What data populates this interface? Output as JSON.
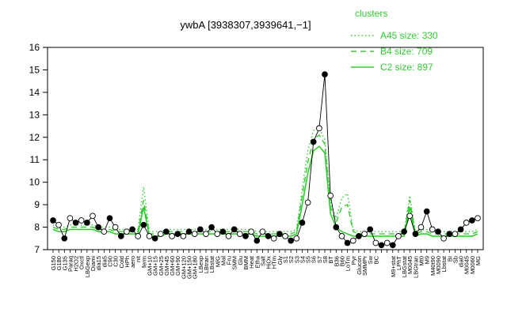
{
  "chart_data": {
    "type": "line",
    "title": "ywbA [3938307,3939641,−1]",
    "xlabel": "",
    "ylabel": "",
    "ylim": [
      7,
      16
    ],
    "yticks": [
      "7",
      "8",
      "9",
      "10",
      "11",
      "12",
      "13",
      "14",
      "15",
      "16"
    ],
    "grid": false,
    "legend": {
      "title": "clusters",
      "placement": "top-right",
      "color": "#33cc33",
      "entries": [
        {
          "label": "A45 size: 330",
          "style": "dotted"
        },
        {
          "label": "B4 size: 709",
          "style": "dashed"
        },
        {
          "label": "C2 size: 897",
          "style": "solid"
        }
      ]
    },
    "point_series_color": "#000000",
    "line_color": "#33cc33",
    "categories": [
      "G150",
      "G180",
      "G135",
      "Paraq",
      "H2O2",
      "Oxctl",
      "LBGexp",
      "Diami",
      "dia15",
      "dia5",
      "C90",
      "C30",
      "Cold",
      "HPh",
      "aero",
      "nit",
      "ferm",
      "GM+10",
      "GM+15",
      "GM+25",
      "GM+45",
      "GM+60",
      "GM+90",
      "GM+120",
      "GM+150",
      "GM+180",
      "LBexp",
      "LBtran",
      "LBstat",
      "M/G",
      "Mal",
      "Fru",
      "SMM",
      "Glu",
      "BMM",
      "Heat",
      "Etha",
      "Salt",
      "HiOx",
      "HTm",
      "Gly",
      "S1",
      "S2",
      "S3",
      "S4",
      "S5",
      "S6",
      "S7",
      "S8",
      "BT",
      "B36",
      "B60",
      "LoTm",
      "Pyr",
      "Glucon",
      "SMMPr",
      "Sw",
      "BC",
      "UNK1",
      "UNK2",
      "M9+stat",
      "LPhT",
      "LBGstat",
      "M0045",
      "LBGtran",
      "Mt0",
      "M9",
      "M40t90",
      "M0090",
      "Lbstat",
      "BI",
      "Sb",
      "dia0",
      "M0045b",
      "M0060",
      "MG"
    ],
    "tick_labels": [
      "G150",
      "G180",
      "G135",
      "Paraq",
      "H2O2",
      "Oxctl",
      "LBGexp",
      "Diami",
      "dia15",
      "dia5",
      "C90",
      "C30",
      "Cold",
      "HPh",
      "aero",
      "nit",
      "ferm",
      "GM+10",
      "GM+15",
      "GM+25",
      "GM+45",
      "GM+60",
      "GM+90",
      "GM+120",
      "GM+150",
      "GM+180",
      "LBexp",
      "LBtran",
      "LBstat",
      "M/G",
      "Mal",
      "Fru",
      "SMM",
      "Glu",
      "BMM",
      "Heat",
      "Etha",
      "Salt",
      "HiOx",
      "HTm",
      "Gly",
      "S1",
      "S2",
      "S3",
      "S4",
      "S5",
      "S6",
      "S7",
      "S8",
      "BT",
      "B36",
      "B60",
      "LoTm",
      "Pyr",
      "Glucon",
      "SMMPr",
      "Sw",
      "BC",
      "",
      "",
      "M9+stat",
      "LPhT",
      "LBGstat",
      "M0045",
      "LBGtran",
      "Mt0",
      "M9",
      "M40t90",
      "M0090",
      "Lbstat",
      "BI",
      "Sb",
      "dia0",
      "M0045",
      "M0060",
      "MG"
    ],
    "series": [
      {
        "kind": "points",
        "values": [
          8.3,
          8.1,
          7.5,
          8.4,
          8.2,
          8.3,
          8.2,
          8.5,
          8.0,
          7.8,
          8.4,
          8.0,
          7.6,
          7.8,
          7.9,
          7.6,
          8.1,
          7.6,
          7.5,
          7.7,
          7.8,
          7.6,
          7.7,
          7.6,
          7.8,
          7.7,
          7.9,
          7.7,
          8.0,
          7.7,
          7.8,
          7.6,
          7.9,
          7.7,
          7.6,
          7.8,
          7.4,
          7.8,
          7.6,
          7.5,
          7.7,
          7.6,
          7.4,
          7.5,
          8.2,
          9.1,
          11.8,
          12.4,
          14.8,
          9.4,
          8.0,
          7.6,
          7.3,
          7.4,
          7.6,
          7.7,
          7.9,
          7.3,
          7.2,
          7.3,
          7.2,
          7.6,
          7.8,
          8.5,
          7.7,
          8.0,
          8.7,
          7.9,
          7.8,
          7.5,
          7.7,
          7.7,
          7.9,
          8.2,
          8.3,
          8.4
        ]
      },
      {
        "kind": "line",
        "style": "solid",
        "values": [
          7.9,
          7.8,
          7.8,
          7.9,
          7.9,
          7.9,
          7.9,
          7.9,
          7.8,
          7.8,
          7.8,
          7.7,
          7.7,
          7.7,
          7.7,
          7.7,
          8.9,
          7.6,
          7.6,
          7.6,
          7.7,
          7.7,
          7.7,
          7.7,
          7.7,
          7.7,
          7.7,
          7.7,
          7.7,
          7.7,
          7.7,
          7.7,
          7.7,
          7.7,
          7.7,
          7.7,
          7.6,
          7.6,
          7.6,
          7.6,
          7.6,
          7.6,
          7.6,
          7.7,
          9.0,
          10.4,
          11.4,
          11.6,
          11.3,
          8.6,
          8.0,
          7.8,
          7.7,
          7.6,
          7.6,
          7.6,
          7.6,
          7.6,
          7.6,
          7.6,
          7.6,
          7.6,
          7.6,
          8.9,
          7.6,
          7.7,
          7.7,
          7.6,
          7.6,
          7.6,
          7.6,
          7.6,
          7.6,
          7.6,
          7.6,
          7.7
        ]
      },
      {
        "kind": "line",
        "style": "dashed",
        "values": [
          8.0,
          7.9,
          7.9,
          8.0,
          8.0,
          8.0,
          8.0,
          8.0,
          7.9,
          7.9,
          7.9,
          7.8,
          7.8,
          7.8,
          7.8,
          7.8,
          9.2,
          7.7,
          7.7,
          7.7,
          7.8,
          7.8,
          7.8,
          7.8,
          7.8,
          7.8,
          7.8,
          7.8,
          7.8,
          7.8,
          7.8,
          7.8,
          7.8,
          7.8,
          7.8,
          7.8,
          7.7,
          7.7,
          7.7,
          7.7,
          7.7,
          7.7,
          7.7,
          7.8,
          9.4,
          10.9,
          11.9,
          12.1,
          11.7,
          8.9,
          8.2,
          8.9,
          9.0,
          7.8,
          7.7,
          7.7,
          7.7,
          7.7,
          7.7,
          7.7,
          7.7,
          7.7,
          7.7,
          9.2,
          7.7,
          7.8,
          7.8,
          7.7,
          7.7,
          7.7,
          7.7,
          7.7,
          7.7,
          7.7,
          7.7,
          7.8
        ]
      },
      {
        "kind": "line",
        "style": "dotted",
        "values": [
          8.1,
          8.0,
          8.0,
          8.1,
          8.1,
          8.1,
          8.1,
          8.1,
          8.0,
          8.0,
          8.0,
          7.9,
          7.9,
          7.9,
          7.9,
          7.9,
          9.8,
          7.8,
          7.8,
          7.8,
          7.9,
          7.9,
          7.9,
          7.9,
          7.9,
          7.9,
          7.9,
          7.9,
          7.9,
          7.9,
          7.9,
          7.9,
          7.9,
          7.9,
          7.9,
          7.9,
          7.8,
          7.8,
          7.8,
          7.8,
          7.8,
          7.8,
          7.8,
          7.9,
          9.7,
          11.4,
          12.3,
          12.4,
          11.9,
          9.1,
          8.4,
          9.3,
          9.5,
          7.9,
          7.8,
          7.8,
          7.8,
          7.8,
          7.8,
          7.8,
          7.8,
          7.8,
          7.8,
          9.4,
          7.8,
          7.9,
          7.9,
          7.8,
          7.8,
          7.8,
          7.8,
          7.8,
          7.8,
          7.8,
          7.8,
          7.9
        ]
      }
    ]
  }
}
